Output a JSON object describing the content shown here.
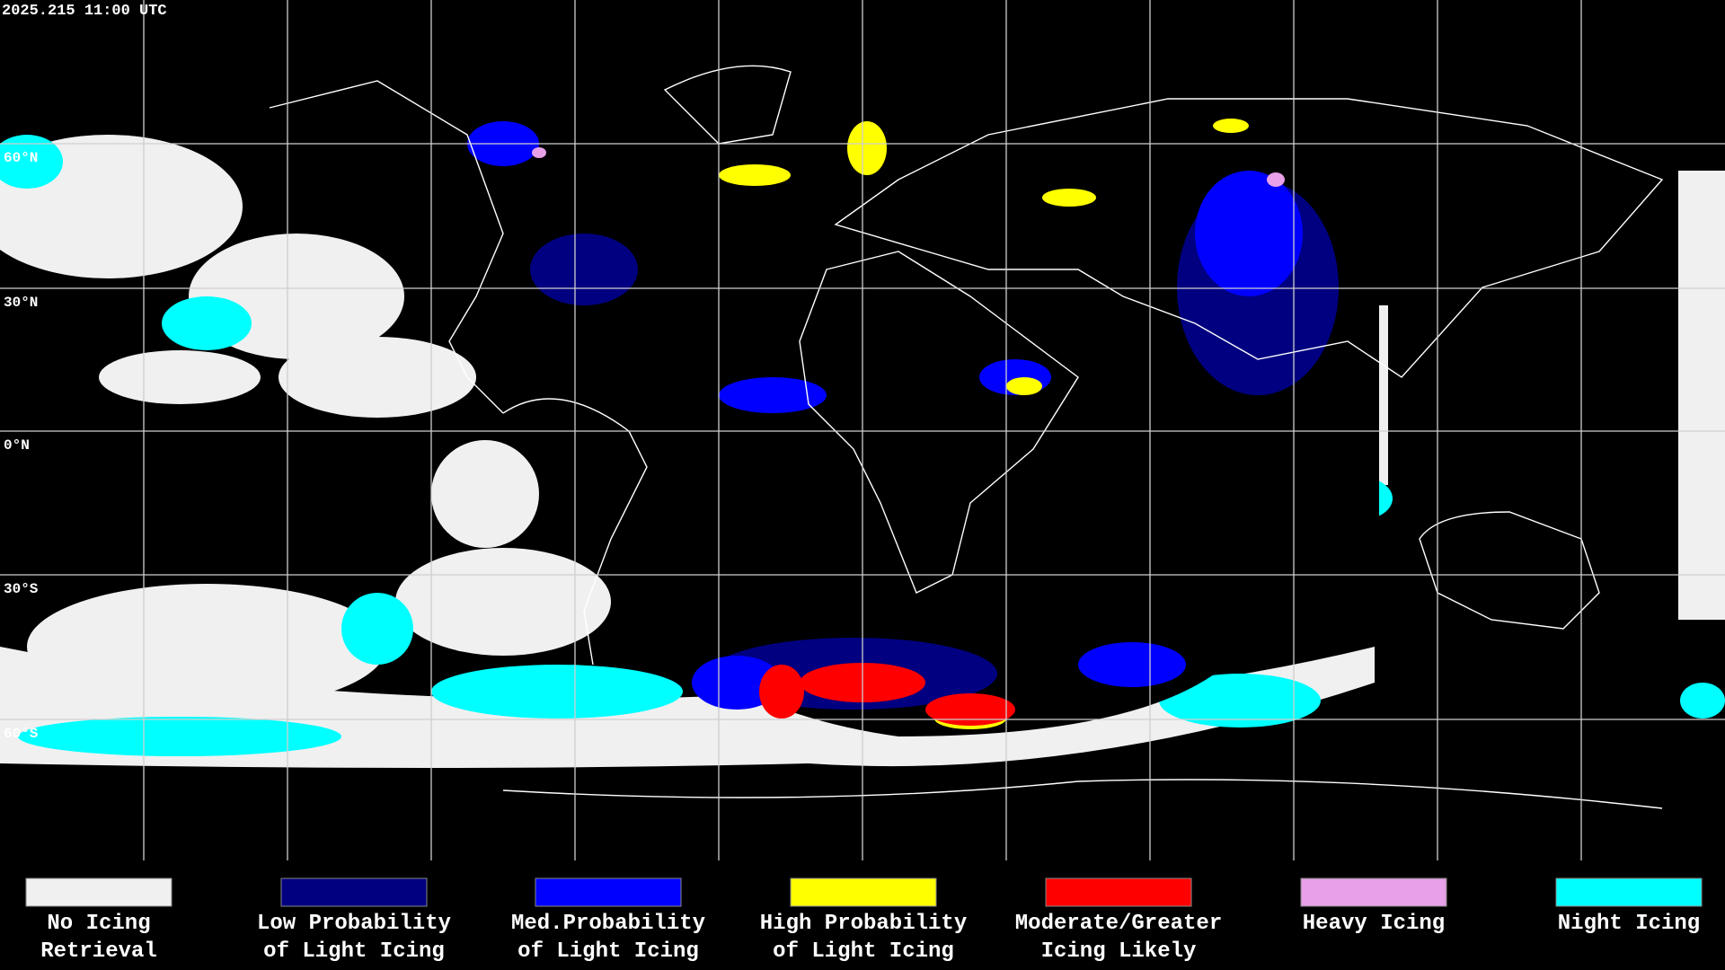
{
  "timestamp": "2025.215 11:00 UTC",
  "latitude_labels": [
    "60°N",
    "30°N",
    "0°N",
    "30°S",
    "60°S"
  ],
  "legend": [
    {
      "lines": [
        "No Icing",
        "Retrieval"
      ],
      "color": "#f0f0f0"
    },
    {
      "lines": [
        "Low Probability",
        "of Light Icing"
      ],
      "color": "#000080"
    },
    {
      "lines": [
        "Med.Probability",
        "of Light Icing"
      ],
      "color": "#0000ff"
    },
    {
      "lines": [
        "High Probability",
        "of Light Icing"
      ],
      "color": "#ffff00"
    },
    {
      "lines": [
        "Moderate/Greater",
        "Icing Likely"
      ],
      "color": "#ff0000"
    },
    {
      "lines": [
        "Heavy Icing"
      ],
      "color": "#e8a0e8"
    },
    {
      "lines": [
        "Night Icing"
      ],
      "color": "#00ffff"
    }
  ]
}
